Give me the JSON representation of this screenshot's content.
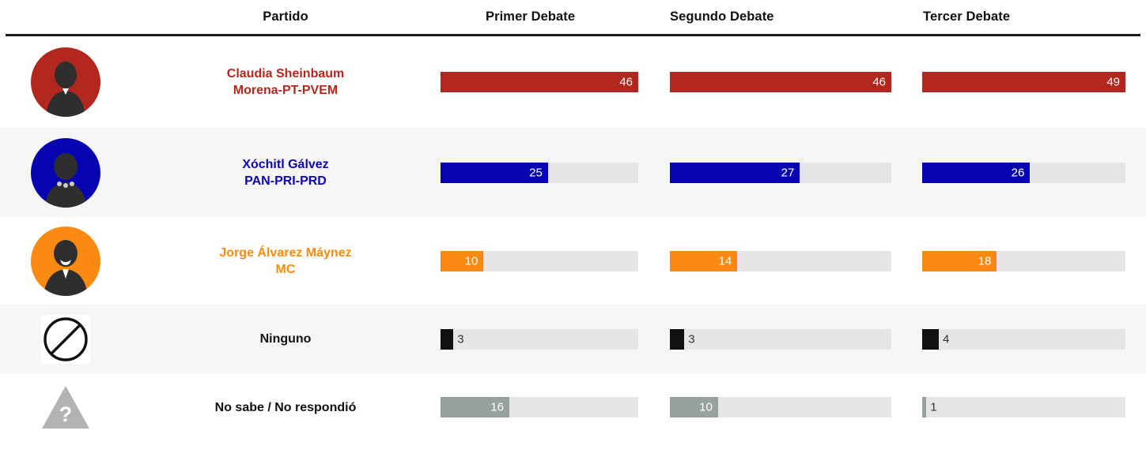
{
  "header": {
    "columns": [
      "Partido",
      "Primer Debate",
      "Segundo Debate",
      "Tercer Debate"
    ]
  },
  "chart_data": {
    "type": "bar",
    "title": "",
    "categories": [
      "Primer Debate",
      "Segundo Debate",
      "Tercer Debate"
    ],
    "column_max": [
      46,
      46,
      49
    ],
    "series": [
      {
        "name": "Claudia Sheinbaum",
        "party": "Morena-PT-PVEM",
        "values": [
          46,
          46,
          49
        ],
        "color": "#b2281e",
        "label_color": "#b2281e",
        "icon": "candidate-photo-avatar"
      },
      {
        "name": "Xóchitl Gálvez",
        "party": "PAN-PRI-PRD",
        "values": [
          25,
          27,
          26
        ],
        "color": "#0504b0",
        "label_color": "#0b04b5",
        "icon": "candidate-photo-avatar"
      },
      {
        "name": "Jorge Álvarez Máynez",
        "party": "MC",
        "values": [
          10,
          14,
          18
        ],
        "color": "#fb8a12",
        "label_color": "#fb8a12",
        "icon": "candidate-photo-avatar"
      },
      {
        "name": "Ninguno",
        "party": "",
        "values": [
          3,
          3,
          4
        ],
        "color": "#111111",
        "label_color": "#111111",
        "icon": "prohibition-icon"
      },
      {
        "name": "No sabe / No respondió",
        "party": "",
        "values": [
          16,
          10,
          1
        ],
        "color": "#98a0a0",
        "label_color": "#111111",
        "icon": "question-triangle-icon"
      }
    ],
    "legend": "none",
    "value_labels": "at end of each bar; white inside bar, dark gray outside for small bars",
    "colors": {
      "track": "#e6e6e6",
      "row_alt_bg": "#f6f6f6",
      "header_rule": "#1a1a1a",
      "value_label_inside": "#ffffff",
      "value_label_outside": "#333333",
      "silhouette": "#2e2e2e",
      "triangle_gray": "#b3b3b3"
    }
  }
}
